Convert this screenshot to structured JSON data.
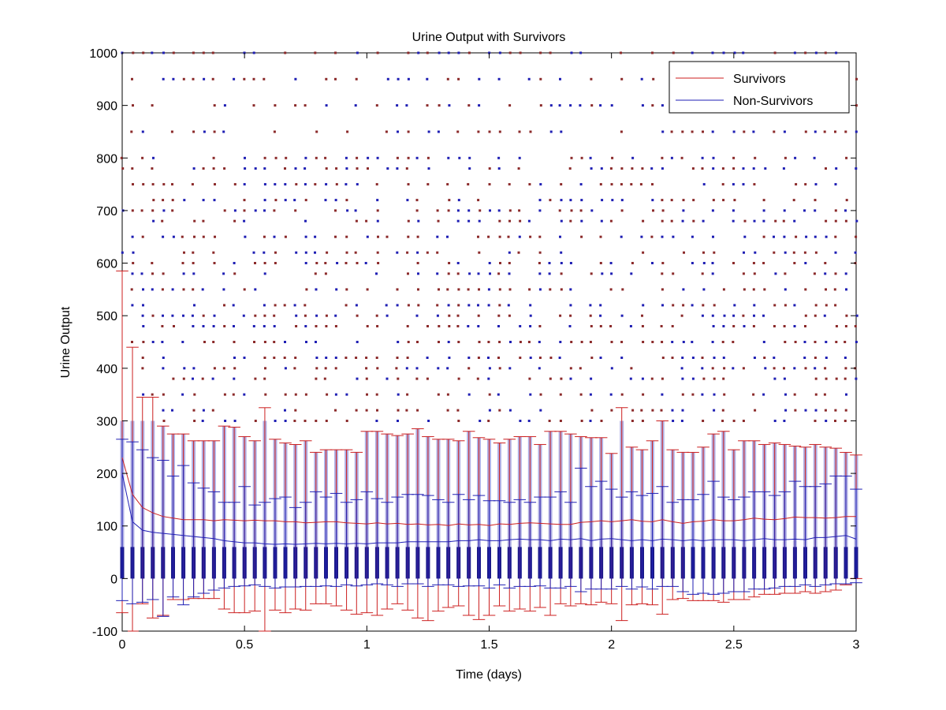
{
  "chart_data": {
    "type": "line",
    "title": "Urine Output with Survivors",
    "xlabel": "Time (days)",
    "ylabel": "Urine Output",
    "xlim": [
      0,
      3
    ],
    "ylim": [
      -100,
      1000
    ],
    "xticks": [
      0,
      0.5,
      1,
      1.5,
      2,
      2.5,
      3
    ],
    "xtick_labels": [
      "0",
      "0.5",
      "1",
      "1.5",
      "2",
      "2.5",
      "3"
    ],
    "yticks": [
      -100,
      0,
      100,
      200,
      300,
      400,
      500,
      600,
      700,
      800,
      900,
      1000
    ],
    "ytick_labels": [
      "-100",
      "0",
      "100",
      "200",
      "300",
      "400",
      "500",
      "600",
      "700",
      "800",
      "900",
      "1000"
    ],
    "grid": false,
    "legend_position": "top-right",
    "legend": [
      "Survivors",
      "Non-Survivors"
    ],
    "colors": {
      "survivors": "#cc1f1f",
      "non_survivors": "#1f1fb4",
      "outliers": "#8b2a2a"
    },
    "box_width_days": 0.012,
    "x": [
      0,
      0.042,
      0.083,
      0.125,
      0.167,
      0.208,
      0.25,
      0.292,
      0.333,
      0.375,
      0.417,
      0.458,
      0.5,
      0.542,
      0.583,
      0.625,
      0.667,
      0.708,
      0.75,
      0.792,
      0.833,
      0.875,
      0.917,
      0.958,
      1,
      1.042,
      1.083,
      1.125,
      1.167,
      1.208,
      1.25,
      1.292,
      1.333,
      1.375,
      1.417,
      1.458,
      1.5,
      1.542,
      1.583,
      1.625,
      1.667,
      1.708,
      1.75,
      1.792,
      1.833,
      1.875,
      1.917,
      1.958,
      2,
      2.042,
      2.083,
      2.125,
      2.167,
      2.208,
      2.25,
      2.292,
      2.333,
      2.375,
      2.417,
      2.458,
      2.5,
      2.542,
      2.583,
      2.625,
      2.667,
      2.708,
      2.75,
      2.792,
      2.833,
      2.875,
      2.917,
      2.958,
      3
    ],
    "series": [
      {
        "name": "Survivors",
        "mean": [
          230,
          160,
          135,
          125,
          118,
          115,
          112,
          112,
          112,
          110,
          112,
          111,
          110,
          111,
          110,
          110,
          108,
          108,
          106,
          107,
          108,
          108,
          106,
          105,
          104,
          106,
          104,
          105,
          103,
          104,
          102,
          103,
          101,
          104,
          102,
          103,
          101,
          104,
          103,
          105,
          106,
          105,
          104,
          103,
          103,
          107,
          108,
          110,
          108,
          110,
          112,
          109,
          108,
          112,
          108,
          105,
          108,
          109,
          112,
          110,
          110,
          112,
          115,
          113,
          112,
          114,
          117,
          116,
          116,
          115,
          116,
          118,
          118
        ],
        "whisker_high": [
          585,
          440,
          345,
          345,
          290,
          275,
          275,
          262,
          262,
          262,
          290,
          288,
          270,
          262,
          325,
          265,
          258,
          255,
          262,
          240,
          245,
          245,
          245,
          240,
          280,
          280,
          275,
          272,
          275,
          285,
          270,
          265,
          265,
          262,
          280,
          268,
          265,
          258,
          265,
          270,
          270,
          255,
          280,
          280,
          275,
          270,
          268,
          268,
          238,
          325,
          250,
          245,
          262,
          300,
          245,
          240,
          240,
          250,
          275,
          280,
          245,
          262,
          262,
          255,
          258,
          255,
          252,
          250,
          255,
          250,
          248,
          240,
          235
        ],
        "whisker_low": [
          -65,
          -100,
          -48,
          -75,
          -70,
          -40,
          -40,
          -38,
          -38,
          -38,
          -58,
          -65,
          -65,
          -62,
          -100,
          -60,
          -65,
          -58,
          -60,
          -48,
          -48,
          -52,
          -60,
          -68,
          -65,
          -70,
          -58,
          -48,
          -60,
          -75,
          -80,
          -62,
          -55,
          -52,
          -70,
          -78,
          -70,
          -52,
          -62,
          -58,
          -62,
          -55,
          -70,
          -48,
          -52,
          -48,
          -50,
          -45,
          -48,
          -80,
          -50,
          -48,
          -50,
          -68,
          -40,
          -38,
          -42,
          -42,
          -42,
          -45,
          -40,
          -40,
          -35,
          -30,
          -30,
          -28,
          -28,
          -25,
          -28,
          -25,
          -22,
          -12,
          0
        ]
      },
      {
        "name": "Non-Survivors",
        "mean": [
          200,
          108,
          92,
          88,
          86,
          84,
          82,
          80,
          78,
          76,
          72,
          70,
          68,
          68,
          66,
          65,
          66,
          65,
          66,
          67,
          66,
          67,
          66,
          67,
          66,
          68,
          68,
          68,
          70,
          70,
          70,
          70,
          70,
          72,
          72,
          74,
          72,
          72,
          74,
          75,
          74,
          74,
          72,
          75,
          74,
          76,
          72,
          75,
          76,
          74,
          72,
          74,
          72,
          75,
          74,
          72,
          74,
          72,
          74,
          74,
          74,
          72,
          74,
          76,
          74,
          74,
          75,
          74,
          78,
          78,
          80,
          82,
          75
        ],
        "whisker_high": [
          265,
          260,
          245,
          230,
          225,
          195,
          215,
          182,
          172,
          165,
          145,
          145,
          175,
          140,
          145,
          152,
          155,
          135,
          145,
          165,
          155,
          162,
          145,
          150,
          165,
          152,
          145,
          155,
          160,
          160,
          158,
          150,
          145,
          160,
          150,
          158,
          148,
          148,
          145,
          150,
          145,
          155,
          155,
          165,
          145,
          210,
          175,
          185,
          170,
          155,
          165,
          158,
          162,
          175,
          145,
          150,
          150,
          160,
          185,
          155,
          150,
          155,
          165,
          165,
          158,
          165,
          185,
          175,
          175,
          180,
          195,
          195,
          170
        ],
        "whisker_low": [
          -42,
          -48,
          -45,
          -40,
          -72,
          -35,
          -50,
          -35,
          -28,
          -22,
          -18,
          -15,
          -14,
          -12,
          -15,
          -18,
          -16,
          -16,
          -15,
          -15,
          -14,
          -15,
          -12,
          -14,
          -12,
          -10,
          -12,
          -15,
          -10,
          -10,
          -15,
          -12,
          -12,
          -15,
          -14,
          -14,
          -18,
          -12,
          -18,
          -15,
          -15,
          -14,
          -18,
          -18,
          -15,
          -25,
          -20,
          -20,
          -20,
          -15,
          -20,
          -16,
          -20,
          -15,
          -15,
          -25,
          -30,
          -28,
          -30,
          -28,
          -25,
          -25,
          -20,
          -20,
          -18,
          -15,
          -15,
          -12,
          -15,
          -12,
          -10,
          -10,
          -8
        ]
      }
    ],
    "outlier_levels": [
      300,
      320,
      350,
      380,
      400,
      420,
      450,
      480,
      500,
      520,
      550,
      580,
      600,
      620,
      650,
      680,
      700,
      720,
      750,
      780,
      800,
      850,
      900,
      950,
      1000
    ]
  }
}
